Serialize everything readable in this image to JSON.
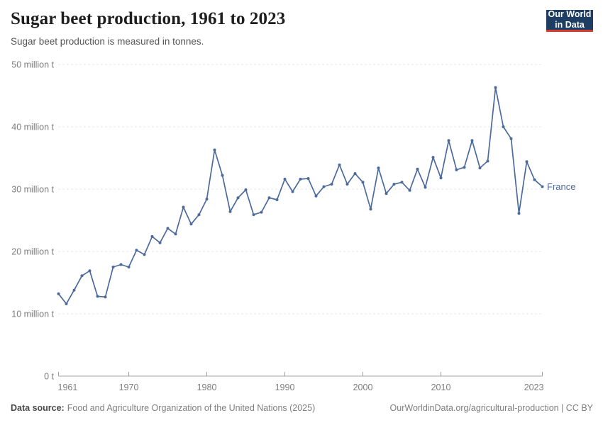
{
  "header": {
    "title": "Sugar beet production, 1961 to 2023",
    "subtitle": "Sugar beet production is measured in tonnes."
  },
  "logo": {
    "line1": "Our World",
    "line2": "in Data"
  },
  "chart_data": {
    "type": "line",
    "title": "Sugar beet production, 1961 to 2023",
    "xlabel": "",
    "ylabel": "Sugar beet production",
    "values_unit": "million tonnes",
    "grid": "horizontal-dashed",
    "legend": "end-of-line-label",
    "xlim": [
      1961,
      2023
    ],
    "ylim": [
      0,
      50
    ],
    "x": [
      1961,
      1962,
      1963,
      1964,
      1965,
      1966,
      1967,
      1968,
      1969,
      1970,
      1971,
      1972,
      1973,
      1974,
      1975,
      1976,
      1977,
      1978,
      1979,
      1980,
      1981,
      1982,
      1983,
      1984,
      1985,
      1986,
      1987,
      1988,
      1989,
      1990,
      1991,
      1992,
      1993,
      1994,
      1995,
      1996,
      1997,
      1998,
      1999,
      2000,
      2001,
      2002,
      2003,
      2004,
      2005,
      2006,
      2007,
      2008,
      2009,
      2010,
      2011,
      2012,
      2013,
      2014,
      2015,
      2016,
      2017,
      2018,
      2019,
      2020,
      2021,
      2022,
      2023
    ],
    "series": [
      {
        "name": "France",
        "color": "#4c6a9c",
        "values": [
          13.2,
          11.6,
          13.8,
          16.1,
          16.9,
          12.8,
          12.7,
          17.5,
          17.9,
          17.5,
          20.2,
          19.5,
          22.4,
          21.4,
          23.7,
          22.8,
          27.1,
          24.4,
          25.9,
          28.4,
          36.3,
          32.2,
          26.4,
          28.6,
          29.9,
          25.9,
          26.3,
          28.6,
          28.3,
          31.6,
          29.6,
          31.6,
          31.7,
          28.9,
          30.4,
          30.8,
          33.9,
          30.8,
          32.5,
          31.1,
          26.8,
          33.4,
          29.3,
          30.8,
          31.1,
          29.8,
          33.2,
          30.3,
          35.1,
          31.8,
          37.8,
          33.1,
          33.5,
          37.8,
          33.4,
          34.5,
          46.3,
          40.0,
          38.1,
          26.1,
          34.4,
          31.5,
          30.4
        ]
      }
    ],
    "y_ticks": [
      {
        "value": 0,
        "label": "0 t"
      },
      {
        "value": 10,
        "label": "10 million t"
      },
      {
        "value": 20,
        "label": "20 million t"
      },
      {
        "value": 30,
        "label": "30 million t"
      },
      {
        "value": 40,
        "label": "40 million t"
      },
      {
        "value": 50,
        "label": "50 million t"
      }
    ],
    "x_ticks": [
      {
        "value": 1961,
        "label": "1961"
      },
      {
        "value": 1970,
        "label": "1970"
      },
      {
        "value": 1980,
        "label": "1980"
      },
      {
        "value": 1990,
        "label": "1990"
      },
      {
        "value": 2000,
        "label": "2000"
      },
      {
        "value": 2010,
        "label": "2010"
      },
      {
        "value": 2023,
        "label": "2023"
      }
    ]
  },
  "footer": {
    "source_label": "Data source:",
    "source_text": "Food and Agriculture Organization of the United Nations (2025)",
    "credit": "OurWorldinData.org/agricultural-production | CC BY"
  },
  "colors": {
    "line": "#4c6a9c",
    "grid": "#dddddd",
    "axis": "#a0a0a0",
    "tick_text": "#7d7d7d",
    "logo_bg": "#1d3d63",
    "logo_stripe": "#d93a2d"
  }
}
